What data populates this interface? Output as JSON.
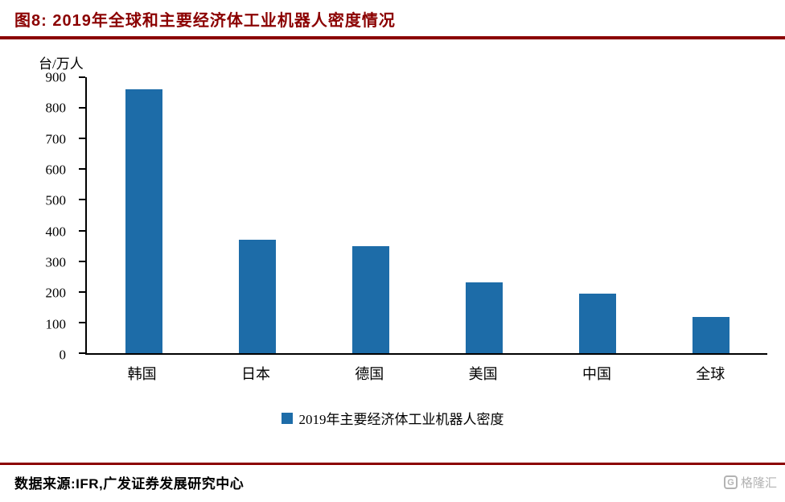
{
  "header": {
    "title": "图8: 2019年全球和主要经济体工业机器人密度情况"
  },
  "chart_data": {
    "type": "bar",
    "title": "2019年全球和主要经济体工业机器人密度情况",
    "categories": [
      "韩国",
      "日本",
      "德国",
      "美国",
      "中国",
      "全球"
    ],
    "values": [
      860,
      370,
      350,
      232,
      193,
      118
    ],
    "unit_label": "台/万人",
    "xlabel": "",
    "ylabel": "台/万人",
    "ylim": [
      0,
      900
    ],
    "ytick_step": 100,
    "grid": false,
    "legend_label": "2019年主要经济体工业机器人密度",
    "legend_position": "bottom-center",
    "bar_color": "#1D6CA8"
  },
  "colors": {
    "accent_dark_red": "#8B0000",
    "bar_blue": "#1D6CA8",
    "axis_black": "#000000",
    "watermark_gray": "#b3b3b3"
  },
  "footer": {
    "source": "数据来源:IFR,广发证券发展研究中心",
    "logo_text": "格隆汇",
    "logo_glyph": "G"
  }
}
